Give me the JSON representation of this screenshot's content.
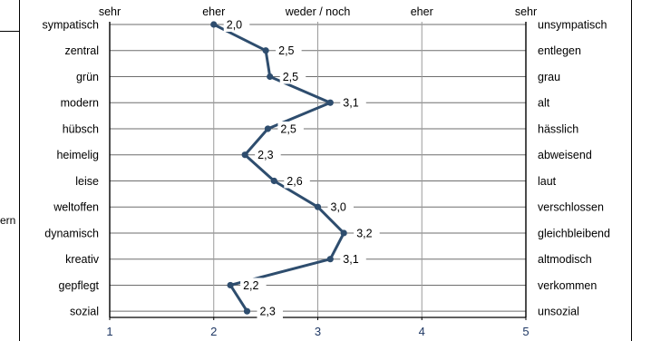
{
  "context_fragment": "ern",
  "chart_data": {
    "type": "line",
    "orientation": "horizontal-profile",
    "scale_labels": [
      "sehr",
      "eher",
      "weder / noch",
      "eher",
      "sehr"
    ],
    "x_ticks": [
      "1",
      "2",
      "3",
      "4",
      "5"
    ],
    "xlim": [
      1,
      5
    ],
    "grid": true,
    "line_color": "#2e4d6e",
    "items": [
      {
        "left": "sympatisch",
        "right": "unsympatisch",
        "value": 2.0,
        "label": "2,0"
      },
      {
        "left": "zentral",
        "right": "entlegen",
        "value": 2.5,
        "label": "2,5"
      },
      {
        "left": "grün",
        "right": "grau",
        "value": 2.54,
        "label": "2,5"
      },
      {
        "left": "modern",
        "right": "alt",
        "value": 3.12,
        "label": "3,1"
      },
      {
        "left": "hübsch",
        "right": "hässlich",
        "value": 2.52,
        "label": "2,5"
      },
      {
        "left": "heimelig",
        "right": "abweisend",
        "value": 2.3,
        "label": "2,3"
      },
      {
        "left": "leise",
        "right": "laut",
        "value": 2.58,
        "label": "2,6"
      },
      {
        "left": "weltoffen",
        "right": "verschlossen",
        "value": 3.0,
        "label": "3,0"
      },
      {
        "left": "dynamisch",
        "right": "gleichbleibend",
        "value": 3.25,
        "label": "3,2"
      },
      {
        "left": "kreativ",
        "right": "altmodisch",
        "value": 3.12,
        "label": "3,1"
      },
      {
        "left": "gepflegt",
        "right": "verkommen",
        "value": 2.16,
        "label": "2,2"
      },
      {
        "left": "sozial",
        "right": "unsozial",
        "value": 2.32,
        "label": "2,3"
      }
    ]
  }
}
